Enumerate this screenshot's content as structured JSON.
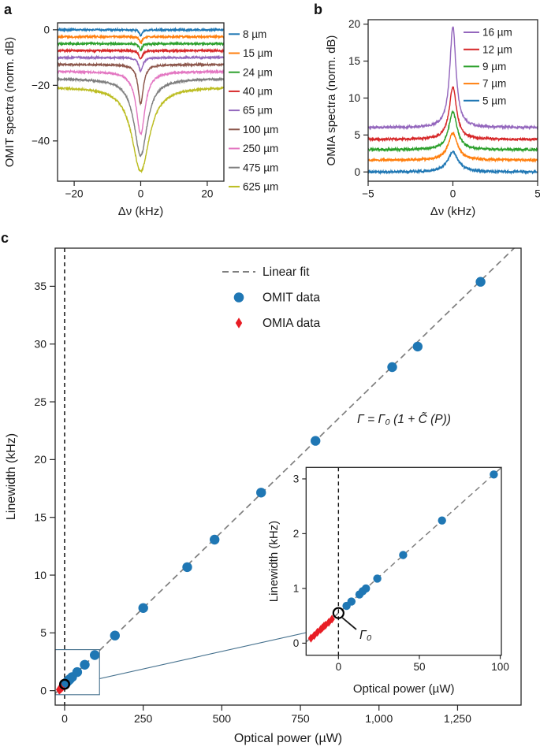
{
  "panels": {
    "a": {
      "letter": "a"
    },
    "b": {
      "letter": "b"
    },
    "c": {
      "letter": "c"
    }
  },
  "colors": {
    "text": "#1a1a1a",
    "axis": "#262626",
    "fit_gray": "#7f7f7f",
    "omit_blue": "#1f77b4",
    "omia_red": "#e81c24",
    "connector_blue": "#44708d"
  },
  "chart_data": [
    {
      "id": "a",
      "type": "line",
      "xlabel": "Δν (kHz)",
      "ylabel": "OMIT spectra (norm. dB)",
      "xlim": [
        -25,
        25
      ],
      "ylim": [
        -54.5,
        2.5
      ],
      "xticks": [
        -20,
        0,
        20
      ],
      "yticks": [
        0,
        -20,
        -40
      ],
      "grid": false,
      "legend_position": "right-outside",
      "series": [
        {
          "label": "8 µm",
          "color": "#1f77b4",
          "baseline": 0,
          "extremum": -2.3,
          "hwhm_khz": 0.45
        },
        {
          "label": "15 µm",
          "color": "#ff7f0e",
          "baseline": -2.5,
          "extremum": -4.7,
          "hwhm_khz": 0.5
        },
        {
          "label": "24 µm",
          "color": "#2ca02c",
          "baseline": -5,
          "extremum": -7.2,
          "hwhm_khz": 0.55
        },
        {
          "label": "40 µm",
          "color": "#d62728",
          "baseline": -7.5,
          "extremum": -10.6,
          "hwhm_khz": 0.62
        },
        {
          "label": "65 µm",
          "color": "#9467bd",
          "baseline": -10,
          "extremum": -14.9,
          "hwhm_khz": 0.75
        },
        {
          "label": "100 µm",
          "color": "#8c564b",
          "baseline": -12.5,
          "extremum": -26.6,
          "hwhm_khz": 0.95
        },
        {
          "label": "250 µm",
          "color": "#e377c2",
          "baseline": -15,
          "extremum": -37.5,
          "hwhm_khz": 1.6
        },
        {
          "label": "475 µm",
          "color": "#7f7f7f",
          "baseline": -17.5,
          "extremum": -45.3,
          "hwhm_khz": 2.4
        },
        {
          "label": "625 µm",
          "color": "#bcbd22",
          "baseline": -20.5,
          "extremum": -51.0,
          "hwhm_khz": 3.2
        }
      ]
    },
    {
      "id": "b",
      "type": "line",
      "xlabel": "Δν (kHz)",
      "ylabel": "OMIA spectra (norm. dB)",
      "xlim": [
        -5,
        5
      ],
      "ylim": [
        -1.25,
        20.6
      ],
      "xticks": [
        -5,
        0,
        5
      ],
      "yticks": [
        0,
        5,
        10,
        15,
        20
      ],
      "grid": false,
      "legend_position": "top-right-inside",
      "series": [
        {
          "label": "16 µm",
          "color": "#9467bd",
          "baseline": 6.0,
          "extremum": 19.7,
          "hwhm_khz": 0.22
        },
        {
          "label": "12 µm",
          "color": "#d62728",
          "baseline": 4.4,
          "extremum": 11.5,
          "hwhm_khz": 0.26
        },
        {
          "label": "9 µm",
          "color": "#2ca02c",
          "baseline": 3.0,
          "extremum": 8.1,
          "hwhm_khz": 0.3
        },
        {
          "label": "7 µm",
          "color": "#ff7f0e",
          "baseline": 1.6,
          "extremum": 5.3,
          "hwhm_khz": 0.33
        },
        {
          "label": "5 µm",
          "color": "#1f77b4",
          "baseline": 0.0,
          "extremum": 2.7,
          "hwhm_khz": 0.38
        }
      ]
    },
    {
      "id": "c",
      "type": "scatter",
      "xlabel": "Optical power (µW)",
      "ylabel": "Linewidth (kHz)",
      "xlim": [
        -30,
        1452
      ],
      "ylim": [
        -1.25,
        38.3
      ],
      "xticks": [
        0,
        250,
        500,
        750,
        1000,
        1250
      ],
      "xtick_labels": [
        "0",
        "250",
        "500",
        "750",
        "1,000",
        "1,250"
      ],
      "yticks": [
        0,
        5,
        10,
        15,
        20,
        25,
        30,
        35
      ],
      "grid": false,
      "legend_position": "upper-center-inside",
      "legend": [
        {
          "label": "Linear fit",
          "marker": "dashed-line",
          "color": "#7f7f7f"
        },
        {
          "label": "OMIT data",
          "marker": "circle",
          "color": "#1f77b4"
        },
        {
          "label": "OMIA data",
          "marker": "diamond",
          "color": "#e81c24"
        }
      ],
      "fit": {
        "slope_khz_per_uw": 0.0264,
        "intercept_khz": 0.55,
        "color": "#7f7f7f"
      },
      "equation": "Γ = Γ₀ (1 + C̃ (P))",
      "gamma0_marker": {
        "label": "Γ₀",
        "x": 0,
        "y": 0.55
      },
      "dashed_zero_line_x": 0,
      "omit_points": [
        [
          5,
          0.68
        ],
        [
          8,
          0.76
        ],
        [
          13,
          0.89
        ],
        [
          15,
          0.95
        ],
        [
          17,
          1.0
        ],
        [
          24,
          1.18
        ],
        [
          40,
          1.61
        ],
        [
          64,
          2.24
        ],
        [
          96,
          3.08
        ],
        [
          160,
          4.77
        ],
        [
          250,
          7.15
        ],
        [
          390,
          10.69
        ],
        [
          477,
          13.07
        ],
        [
          625,
          17.14
        ],
        [
          798,
          21.62
        ],
        [
          1042,
          28.0
        ],
        [
          1123,
          29.78
        ],
        [
          1323,
          35.39
        ]
      ],
      "omia_points": [
        [
          -17,
          0.09
        ],
        [
          -15,
          0.14
        ],
        [
          -13,
          0.2
        ],
        [
          -11,
          0.25
        ],
        [
          -10,
          0.28
        ],
        [
          -9,
          0.31
        ],
        [
          -8,
          0.33
        ],
        [
          -6,
          0.38
        ],
        [
          -4,
          0.44
        ]
      ],
      "zoom_box": {
        "x0": -30,
        "x1": 111,
        "y0": -0.35,
        "y1": 3.55
      },
      "inset": {
        "xlabel": "Optical power (µW)",
        "ylabel": "Linewidth (kHz)",
        "xlim": [
          -20,
          100.7
        ],
        "ylim": [
          -0.22,
          3.21
        ],
        "xticks": [
          0,
          50,
          100
        ],
        "yticks": [
          0,
          1,
          2,
          3
        ]
      }
    }
  ]
}
